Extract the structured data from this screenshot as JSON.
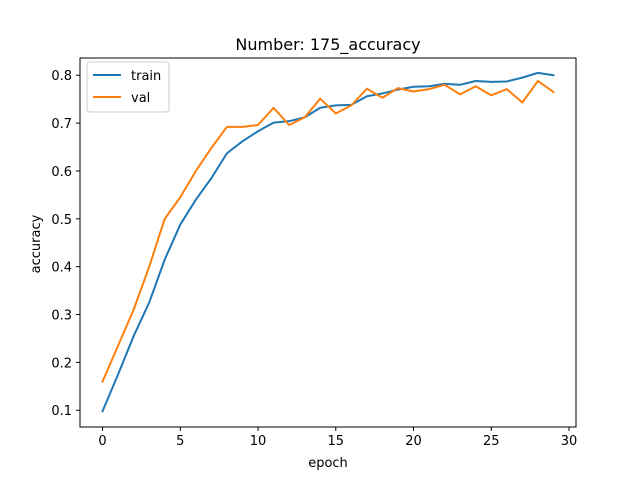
{
  "chart_data": {
    "type": "line",
    "title": "Number: 175_accuracy",
    "xlabel": "epoch",
    "ylabel": "accuracy",
    "xlim": [
      -1.45,
      30.45
    ],
    "ylim": [
      0.065,
      0.836
    ],
    "x_ticks": [
      0,
      5,
      10,
      15,
      20,
      25,
      30
    ],
    "y_ticks": [
      0.1,
      0.2,
      0.3,
      0.4,
      0.5,
      0.6,
      0.7,
      0.8
    ],
    "x_tick_labels": [
      "0",
      "5",
      "10",
      "15",
      "20",
      "25",
      "30"
    ],
    "y_tick_labels": [
      "0.1",
      "0.2",
      "0.3",
      "0.4",
      "0.5",
      "0.6",
      "0.7",
      "0.8"
    ],
    "grid": false,
    "legend_position": "top-left",
    "x": [
      0,
      1,
      2,
      3,
      4,
      5,
      6,
      7,
      8,
      9,
      10,
      11,
      12,
      13,
      14,
      15,
      16,
      17,
      18,
      19,
      20,
      21,
      22,
      23,
      24,
      25,
      26,
      27,
      28,
      29
    ],
    "series": [
      {
        "name": "train",
        "color": "#1f77b4",
        "values": [
          0.098,
          0.175,
          0.255,
          0.325,
          0.415,
          0.488,
          0.54,
          0.585,
          0.637,
          0.662,
          0.683,
          0.701,
          0.704,
          0.712,
          0.732,
          0.737,
          0.738,
          0.756,
          0.762,
          0.77,
          0.776,
          0.777,
          0.782,
          0.78,
          0.788,
          0.786,
          0.787,
          0.795,
          0.805,
          0.8
        ]
      },
      {
        "name": "val",
        "color": "#ff7f0e",
        "values": [
          0.16,
          0.235,
          0.31,
          0.4,
          0.5,
          0.545,
          0.6,
          0.648,
          0.692,
          0.692,
          0.696,
          0.732,
          0.696,
          0.712,
          0.751,
          0.72,
          0.737,
          0.772,
          0.753,
          0.773,
          0.766,
          0.771,
          0.78,
          0.76,
          0.777,
          0.758,
          0.771,
          0.743,
          0.788,
          0.765
        ]
      }
    ]
  }
}
